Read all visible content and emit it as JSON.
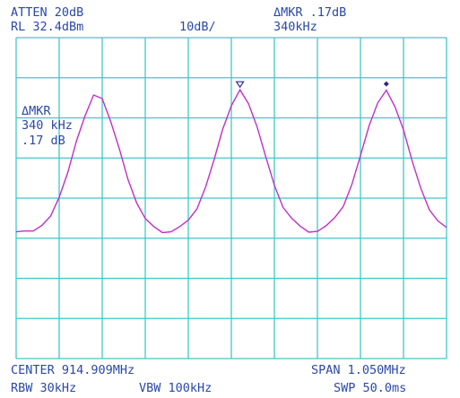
{
  "chart_data": {
    "type": "line",
    "annotations": [
      "ATTEN 20dB",
      "RL 32.4dBm",
      "10dB/",
      "ΔMKR .17dB",
      "340kHz",
      "ΔMKR",
      "340 kHz",
      ".17 dB",
      "CENTER 914.909MHz",
      "SPAN 1.050MHz",
      "RBW 30kHz",
      "VBW 100kHz",
      "SWP 50.0ms"
    ],
    "x": [
      914.384,
      914.405,
      914.426,
      914.447,
      914.468,
      914.489,
      914.51,
      914.531,
      914.552,
      914.573,
      914.594,
      914.615,
      914.636,
      914.657,
      914.678,
      914.699,
      914.72,
      914.741,
      914.762,
      914.783,
      914.804,
      914.825,
      914.846,
      914.867,
      914.888,
      914.909,
      914.93,
      914.951,
      914.972,
      914.993,
      915.014,
      915.035,
      915.056,
      915.077,
      915.098,
      915.119,
      915.14,
      915.161,
      915.182,
      915.203,
      915.224,
      915.245,
      915.266,
      915.287,
      915.308,
      915.329,
      915.35,
      915.371,
      915.392,
      915.413,
      915.434
    ],
    "series": [
      {
        "color": "#c030c8",
        "values": [
          -16.0,
          -15.8,
          -15.8,
          -14.4,
          -12.1,
          -7.4,
          -1.2,
          6.6,
          12.9,
          18.1,
          17.2,
          11.4,
          4.6,
          -3.0,
          -8.8,
          -12.7,
          -14.7,
          -16.2,
          -16.0,
          -14.7,
          -13.1,
          -10.3,
          -4.9,
          2.0,
          9.6,
          15.4,
          19.4,
          15.9,
          10.1,
          2.7,
          -4.4,
          -9.9,
          -12.6,
          -14.6,
          -16.1,
          -15.9,
          -14.5,
          -12.5,
          -9.7,
          -4.2,
          3.0,
          10.4,
          16.1,
          19.3,
          15.2,
          9.4,
          1.7,
          -5.1,
          -10.5,
          -13.3,
          -14.9
        ]
      }
    ],
    "xlim": [
      914.384,
      915.434
    ],
    "xticks": [
      914.384,
      914.489,
      914.594,
      914.699,
      914.804,
      914.909,
      915.014,
      915.119,
      915.224,
      915.329,
      915.434
    ],
    "ylim": [
      -47.6,
      32.4
    ],
    "yticks": [
      -47.6,
      -37.6,
      -27.6,
      -17.6,
      -7.6,
      2.4,
      12.4,
      22.4,
      32.4
    ],
    "grid": true
  }
}
